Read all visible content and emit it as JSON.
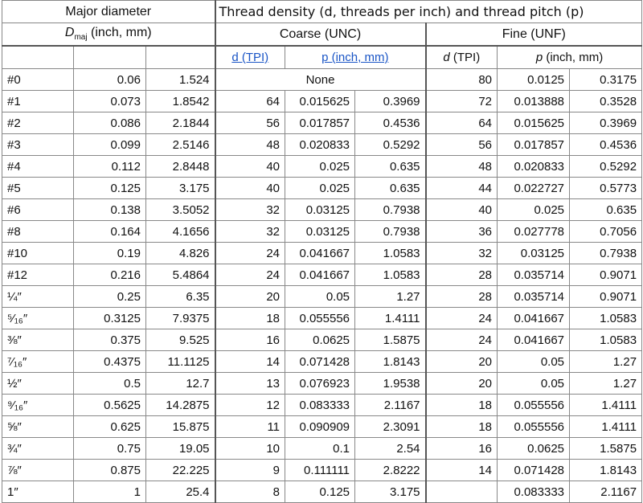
{
  "header": {
    "major_diameter": "Major diameter",
    "d_symbol": "D",
    "d_sub": "maj",
    "d_units": "(inch, mm)",
    "thread_density": "Thread density (d, threads per inch) and thread pitch (p)",
    "coarse": "Coarse (UNC)",
    "fine": "Fine (UNF)",
    "coarse_d": "d (TPI)",
    "coarse_p": "p (inch, mm)",
    "fine_d_symbol": "d",
    "fine_d_units": "(TPI)",
    "fine_p_symbol": "p",
    "fine_p_units": "(inch, mm)"
  },
  "rows": [
    {
      "size": "#0",
      "inch": "0.06",
      "mm": "1.524",
      "coarse_none": "None",
      "f_tpi": "80",
      "f_p_in": "0.0125",
      "f_p_mm": "0.3175"
    },
    {
      "size": "#1",
      "inch": "0.073",
      "mm": "1.8542",
      "c_tpi": "64",
      "c_p_in": "0.015625",
      "c_p_mm": "0.3969",
      "f_tpi": "72",
      "f_p_in": "0.013888",
      "f_p_mm": "0.3528"
    },
    {
      "size": "#2",
      "inch": "0.086",
      "mm": "2.1844",
      "c_tpi": "56",
      "c_p_in": "0.017857",
      "c_p_mm": "0.4536",
      "f_tpi": "64",
      "f_p_in": "0.015625",
      "f_p_mm": "0.3969"
    },
    {
      "size": "#3",
      "inch": "0.099",
      "mm": "2.5146",
      "c_tpi": "48",
      "c_p_in": "0.020833",
      "c_p_mm": "0.5292",
      "f_tpi": "56",
      "f_p_in": "0.017857",
      "f_p_mm": "0.4536"
    },
    {
      "size": "#4",
      "inch": "0.112",
      "mm": "2.8448",
      "c_tpi": "40",
      "c_p_in": "0.025",
      "c_p_mm": "0.635",
      "f_tpi": "48",
      "f_p_in": "0.020833",
      "f_p_mm": "0.5292"
    },
    {
      "size": "#5",
      "inch": "0.125",
      "mm": "3.175",
      "c_tpi": "40",
      "c_p_in": "0.025",
      "c_p_mm": "0.635",
      "f_tpi": "44",
      "f_p_in": "0.022727",
      "f_p_mm": "0.5773"
    },
    {
      "size": "#6",
      "inch": "0.138",
      "mm": "3.5052",
      "c_tpi": "32",
      "c_p_in": "0.03125",
      "c_p_mm": "0.7938",
      "f_tpi": "40",
      "f_p_in": "0.025",
      "f_p_mm": "0.635"
    },
    {
      "size": "#8",
      "inch": "0.164",
      "mm": "4.1656",
      "c_tpi": "32",
      "c_p_in": "0.03125",
      "c_p_mm": "0.7938",
      "f_tpi": "36",
      "f_p_in": "0.027778",
      "f_p_mm": "0.7056"
    },
    {
      "size": "#10",
      "inch": "0.19",
      "mm": "4.826",
      "c_tpi": "24",
      "c_p_in": "0.041667",
      "c_p_mm": "1.0583",
      "f_tpi": "32",
      "f_p_in": "0.03125",
      "f_p_mm": "0.7938"
    },
    {
      "size": "#12",
      "inch": "0.216",
      "mm": "5.4864",
      "c_tpi": "24",
      "c_p_in": "0.041667",
      "c_p_mm": "1.0583",
      "f_tpi": "28",
      "f_p_in": "0.035714",
      "f_p_mm": "0.9071"
    },
    {
      "size": "¼″",
      "inch": "0.25",
      "mm": "6.35",
      "c_tpi": "20",
      "c_p_in": "0.05",
      "c_p_mm": "1.27",
      "f_tpi": "28",
      "f_p_in": "0.035714",
      "f_p_mm": "0.9071"
    },
    {
      "size": "⁵⁄₁₆″",
      "inch": "0.3125",
      "mm": "7.9375",
      "c_tpi": "18",
      "c_p_in": "0.055556",
      "c_p_mm": "1.4111",
      "f_tpi": "24",
      "f_p_in": "0.041667",
      "f_p_mm": "1.0583"
    },
    {
      "size": "⅜″",
      "inch": "0.375",
      "mm": "9.525",
      "c_tpi": "16",
      "c_p_in": "0.0625",
      "c_p_mm": "1.5875",
      "f_tpi": "24",
      "f_p_in": "0.041667",
      "f_p_mm": "1.0583"
    },
    {
      "size": "⁷⁄₁₆″",
      "inch": "0.4375",
      "mm": "11.1125",
      "c_tpi": "14",
      "c_p_in": "0.071428",
      "c_p_mm": "1.8143",
      "f_tpi": "20",
      "f_p_in": "0.05",
      "f_p_mm": "1.27"
    },
    {
      "size": "½″",
      "inch": "0.5",
      "mm": "12.7",
      "c_tpi": "13",
      "c_p_in": "0.076923",
      "c_p_mm": "1.9538",
      "f_tpi": "20",
      "f_p_in": "0.05",
      "f_p_mm": "1.27"
    },
    {
      "size": "⁹⁄₁₆″",
      "inch": "0.5625",
      "mm": "14.2875",
      "c_tpi": "12",
      "c_p_in": "0.083333",
      "c_p_mm": "2.1167",
      "f_tpi": "18",
      "f_p_in": "0.055556",
      "f_p_mm": "1.4111"
    },
    {
      "size": "⅝″",
      "inch": "0.625",
      "mm": "15.875",
      "c_tpi": "11",
      "c_p_in": "0.090909",
      "c_p_mm": "2.3091",
      "f_tpi": "18",
      "f_p_in": "0.055556",
      "f_p_mm": "1.4111"
    },
    {
      "size": "¾″",
      "inch": "0.75",
      "mm": "19.05",
      "c_tpi": "10",
      "c_p_in": "0.1",
      "c_p_mm": "2.54",
      "f_tpi": "16",
      "f_p_in": "0.0625",
      "f_p_mm": "1.5875"
    },
    {
      "size": "⅞″",
      "inch": "0.875",
      "mm": "22.225",
      "c_tpi": "9",
      "c_p_in": "0.111111",
      "c_p_mm": "2.8222",
      "f_tpi": "14",
      "f_p_in": "0.071428",
      "f_p_mm": "1.8143"
    },
    {
      "size": "1″",
      "inch": "1",
      "mm": "25.4",
      "c_tpi": "8",
      "c_p_in": "0.125",
      "c_p_mm": "3.175",
      "f_tpi": "",
      "f_p_in": "0.083333",
      "f_p_mm": "2.1167"
    }
  ]
}
